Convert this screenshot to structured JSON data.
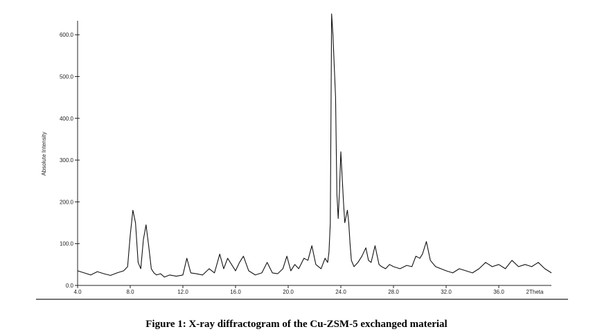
{
  "caption": "Figure 1: X-ray diffractogram of the Cu-ZSM-5 exchanged material",
  "chart_data": {
    "type": "line",
    "xlabel": "2Theta",
    "ylabel": "Absolute Intensity",
    "xlim": [
      4.0,
      40.0
    ],
    "ylim": [
      0.0,
      650.0
    ],
    "grid": false,
    "y_ticks": [
      {
        "value": 0,
        "label": "0.0"
      },
      {
        "value": 100,
        "label": "100.0"
      },
      {
        "value": 200,
        "label": "200.0"
      },
      {
        "value": 300,
        "label": "300.0"
      },
      {
        "value": 400,
        "label": "400.0"
      },
      {
        "value": 500,
        "label": "500.0"
      },
      {
        "value": 600,
        "label": "600.0"
      }
    ],
    "x_ticks": [
      {
        "value": 4,
        "label": "4.0"
      },
      {
        "value": 8,
        "label": "8.0"
      },
      {
        "value": 12,
        "label": "12.0"
      },
      {
        "value": 16,
        "label": "16.0"
      },
      {
        "value": 20,
        "label": "20.0"
      },
      {
        "value": 24,
        "label": "24.0"
      },
      {
        "value": 28,
        "label": "28.0"
      },
      {
        "value": 32,
        "label": "32.0"
      },
      {
        "value": 36,
        "label": "36.0"
      }
    ],
    "series": [
      {
        "x": [
          4.0,
          4.5,
          5.0,
          5.5,
          6.0,
          6.5,
          7.0,
          7.5,
          7.8,
          8.0,
          8.2,
          8.4,
          8.6,
          8.8,
          9.0,
          9.2,
          9.4,
          9.6,
          9.8,
          10.0,
          10.3,
          10.6,
          11.0,
          11.5,
          12.0,
          12.3,
          12.6,
          13.0,
          13.5,
          14.0,
          14.4,
          14.8,
          15.1,
          15.4,
          15.7,
          16.0,
          16.3,
          16.6,
          17.0,
          17.5,
          18.0,
          18.4,
          18.8,
          19.2,
          19.6,
          19.9,
          20.2,
          20.5,
          20.8,
          21.2,
          21.5,
          21.8,
          22.1,
          22.5,
          22.8,
          23.0,
          23.1,
          23.2,
          23.3,
          23.4,
          23.6,
          23.7,
          23.8,
          23.9,
          24.0,
          24.1,
          24.2,
          24.3,
          24.5,
          24.6,
          24.7,
          24.8,
          25.0,
          25.3,
          25.6,
          25.9,
          26.1,
          26.3,
          26.6,
          26.9,
          27.1,
          27.4,
          27.7,
          28.0,
          28.5,
          29.0,
          29.4,
          29.7,
          30.0,
          30.2,
          30.5,
          30.8,
          31.2,
          31.6,
          32.0,
          32.5,
          33.0,
          33.5,
          34.0,
          34.5,
          35.0,
          35.5,
          36.0,
          36.5,
          37.0,
          37.5,
          38.0,
          38.5,
          39.0,
          39.5,
          40.0
        ],
        "y": [
          35,
          30,
          25,
          33,
          28,
          24,
          30,
          35,
          45,
          120,
          180,
          150,
          55,
          40,
          110,
          145,
          95,
          40,
          30,
          25,
          28,
          20,
          25,
          22,
          25,
          65,
          30,
          28,
          25,
          40,
          30,
          75,
          40,
          65,
          50,
          35,
          55,
          70,
          35,
          25,
          30,
          55,
          30,
          28,
          40,
          70,
          35,
          50,
          40,
          65,
          60,
          95,
          50,
          40,
          65,
          55,
          80,
          150,
          650,
          600,
          450,
          220,
          160,
          230,
          320,
          260,
          200,
          150,
          180,
          150,
          100,
          60,
          45,
          55,
          70,
          90,
          60,
          55,
          95,
          50,
          45,
          40,
          50,
          45,
          40,
          48,
          45,
          70,
          65,
          75,
          105,
          60,
          45,
          40,
          35,
          30,
          40,
          35,
          30,
          40,
          55,
          45,
          50,
          40,
          60,
          45,
          50,
          45,
          55,
          40,
          30
        ]
      }
    ]
  }
}
